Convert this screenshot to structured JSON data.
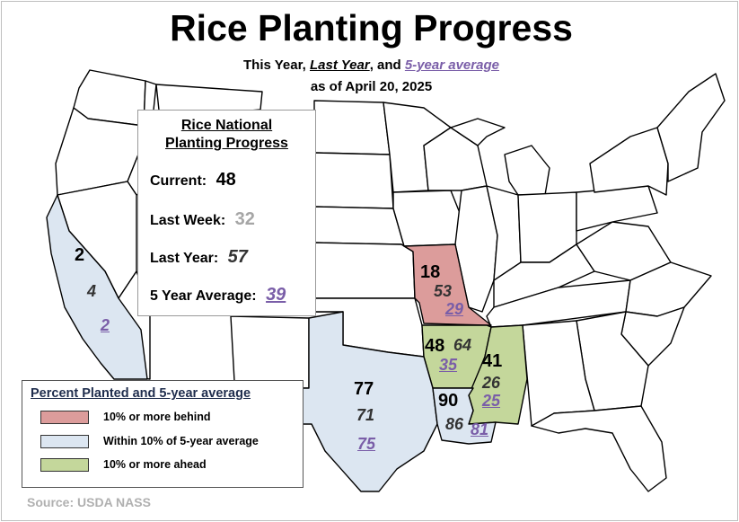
{
  "header": {
    "title": "Rice Planting Progress",
    "subtitle_prefix": "This Year,",
    "subtitle_last_year": "Last Year",
    "subtitle_and": ", and",
    "subtitle_avg": "5-year average",
    "date_line": "as of April 20, 2025"
  },
  "national": {
    "title_line1": "Rice National",
    "title_line2": "Planting Progress",
    "current_label": "Current:",
    "current_value": "48",
    "last_week_label": "Last Week:",
    "last_week_value": "32",
    "last_year_label": "Last Year:",
    "last_year_value": "57",
    "avg_label": "5 Year Average:",
    "avg_value": "39"
  },
  "states": {
    "california": {
      "current": "2",
      "last_year": "4",
      "average": "2",
      "category": "within"
    },
    "missouri": {
      "current": "18",
      "last_year": "53",
      "average": "29",
      "category": "behind"
    },
    "arkansas": {
      "current": "48",
      "last_year": "64",
      "average": "35",
      "category": "ahead"
    },
    "mississippi": {
      "current": "41",
      "last_year": "26",
      "average": "25",
      "category": "ahead"
    },
    "texas": {
      "current": "77",
      "last_year": "71",
      "average": "75",
      "category": "within"
    },
    "louisiana": {
      "current": "90",
      "last_year": "86",
      "average": "81",
      "category": "within"
    }
  },
  "legend": {
    "title": "Percent Planted and 5-year average",
    "items": [
      {
        "label": "10% or more behind",
        "color": "#dc9c9b"
      },
      {
        "label": "Within 10% of 5-year average",
        "color": "#dce6f1"
      },
      {
        "label": "10% or more ahead",
        "color": "#c4d79b"
      }
    ]
  },
  "colors": {
    "behind": "#dc9c9b",
    "within": "#dce6f1",
    "ahead": "#c4d79b",
    "average_text": "#7a5ea8"
  },
  "source": "Source: USDA NASS"
}
